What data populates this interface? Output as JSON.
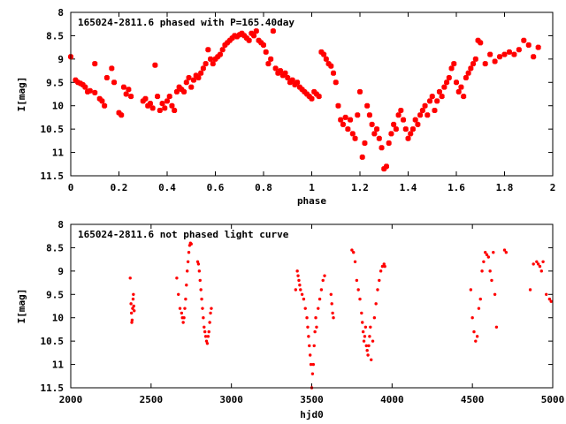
{
  "chart_data": [
    {
      "type": "scatter",
      "title": "165024-2811.6 phased with P=165.40day",
      "xlabel": "phase",
      "ylabel": "I[mag]",
      "xlim": [
        0,
        2
      ],
      "ylim": [
        8,
        11.5
      ],
      "y_inverted": true,
      "xticks": [
        "0",
        "0.2",
        "0.4",
        "0.6",
        "0.8",
        "1",
        "1.2",
        "1.4",
        "1.6",
        "1.8",
        "2"
      ],
      "yticks": [
        "8",
        "8.5",
        "9",
        "9.5",
        "10",
        "10.5",
        "11",
        "11.5"
      ],
      "color": "#ff0000",
      "points": [
        [
          0.0,
          8.95
        ],
        [
          0.02,
          9.45
        ],
        [
          0.03,
          9.5
        ],
        [
          0.04,
          9.52
        ],
        [
          0.05,
          9.55
        ],
        [
          0.06,
          9.6
        ],
        [
          0.07,
          9.7
        ],
        [
          0.08,
          9.68
        ],
        [
          0.1,
          9.72
        ],
        [
          0.1,
          9.1
        ],
        [
          0.12,
          9.85
        ],
        [
          0.13,
          9.9
        ],
        [
          0.14,
          10.0
        ],
        [
          0.15,
          9.4
        ],
        [
          0.17,
          9.2
        ],
        [
          0.18,
          9.5
        ],
        [
          0.2,
          10.15
        ],
        [
          0.21,
          10.2
        ],
        [
          0.22,
          9.6
        ],
        [
          0.23,
          9.75
        ],
        [
          0.24,
          9.65
        ],
        [
          0.25,
          9.8
        ],
        [
          0.3,
          9.9
        ],
        [
          0.31,
          9.85
        ],
        [
          0.32,
          10.0
        ],
        [
          0.33,
          9.95
        ],
        [
          0.34,
          10.05
        ],
        [
          0.35,
          9.13
        ],
        [
          0.36,
          9.8
        ],
        [
          0.37,
          10.1
        ],
        [
          0.38,
          9.95
        ],
        [
          0.39,
          10.05
        ],
        [
          0.4,
          9.9
        ],
        [
          0.41,
          9.8
        ],
        [
          0.42,
          10.0
        ],
        [
          0.43,
          10.1
        ],
        [
          0.44,
          9.7
        ],
        [
          0.45,
          9.6
        ],
        [
          0.46,
          9.65
        ],
        [
          0.47,
          9.7
        ],
        [
          0.48,
          9.5
        ],
        [
          0.49,
          9.4
        ],
        [
          0.5,
          9.6
        ],
        [
          0.51,
          9.45
        ],
        [
          0.52,
          9.35
        ],
        [
          0.53,
          9.4
        ],
        [
          0.54,
          9.3
        ],
        [
          0.55,
          9.2
        ],
        [
          0.56,
          9.1
        ],
        [
          0.57,
          8.8
        ],
        [
          0.58,
          9.0
        ],
        [
          0.59,
          9.1
        ],
        [
          0.6,
          9.0
        ],
        [
          0.61,
          8.95
        ],
        [
          0.62,
          8.9
        ],
        [
          0.63,
          8.8
        ],
        [
          0.64,
          8.7
        ],
        [
          0.65,
          8.65
        ],
        [
          0.66,
          8.6
        ],
        [
          0.67,
          8.55
        ],
        [
          0.68,
          8.5
        ],
        [
          0.69,
          8.52
        ],
        [
          0.7,
          8.48
        ],
        [
          0.71,
          8.45
        ],
        [
          0.72,
          8.5
        ],
        [
          0.73,
          8.55
        ],
        [
          0.74,
          8.6
        ],
        [
          0.75,
          8.45
        ],
        [
          0.76,
          8.5
        ],
        [
          0.77,
          8.4
        ],
        [
          0.78,
          8.6
        ],
        [
          0.79,
          8.65
        ],
        [
          0.8,
          8.7
        ],
        [
          0.81,
          8.85
        ],
        [
          0.82,
          9.1
        ],
        [
          0.83,
          9.0
        ],
        [
          0.84,
          8.4
        ],
        [
          0.85,
          9.2
        ],
        [
          0.86,
          9.3
        ],
        [
          0.87,
          9.25
        ],
        [
          0.88,
          9.35
        ],
        [
          0.89,
          9.3
        ],
        [
          0.9,
          9.4
        ],
        [
          0.91,
          9.5
        ],
        [
          0.92,
          9.45
        ],
        [
          0.93,
          9.55
        ],
        [
          0.94,
          9.5
        ],
        [
          0.95,
          9.6
        ],
        [
          0.96,
          9.65
        ],
        [
          0.97,
          9.7
        ],
        [
          0.98,
          9.75
        ],
        [
          0.99,
          9.8
        ],
        [
          1.0,
          9.85
        ],
        [
          1.01,
          9.7
        ],
        [
          1.02,
          9.75
        ],
        [
          1.03,
          9.8
        ],
        [
          1.04,
          8.85
        ],
        [
          1.05,
          8.9
        ],
        [
          1.06,
          9.0
        ],
        [
          1.07,
          9.1
        ],
        [
          1.08,
          9.15
        ],
        [
          1.09,
          9.3
        ],
        [
          1.1,
          9.5
        ],
        [
          1.11,
          10.0
        ],
        [
          1.12,
          10.3
        ],
        [
          1.13,
          10.4
        ],
        [
          1.14,
          10.25
        ],
        [
          1.15,
          10.5
        ],
        [
          1.16,
          10.3
        ],
        [
          1.17,
          10.6
        ],
        [
          1.18,
          10.7
        ],
        [
          1.19,
          10.2
        ],
        [
          1.2,
          9.7
        ],
        [
          1.21,
          11.1
        ],
        [
          1.22,
          10.8
        ],
        [
          1.23,
          10.0
        ],
        [
          1.24,
          10.2
        ],
        [
          1.25,
          10.4
        ],
        [
          1.26,
          10.6
        ],
        [
          1.27,
          10.5
        ],
        [
          1.28,
          10.7
        ],
        [
          1.29,
          10.9
        ],
        [
          1.3,
          11.35
        ],
        [
          1.31,
          11.3
        ],
        [
          1.32,
          10.8
        ],
        [
          1.33,
          10.6
        ],
        [
          1.34,
          10.4
        ],
        [
          1.35,
          10.5
        ],
        [
          1.36,
          10.2
        ],
        [
          1.37,
          10.1
        ],
        [
          1.38,
          10.3
        ],
        [
          1.39,
          10.5
        ],
        [
          1.4,
          10.7
        ],
        [
          1.41,
          10.6
        ],
        [
          1.42,
          10.5
        ],
        [
          1.43,
          10.3
        ],
        [
          1.44,
          10.4
        ],
        [
          1.45,
          10.2
        ],
        [
          1.46,
          10.1
        ],
        [
          1.47,
          10.0
        ],
        [
          1.48,
          10.2
        ],
        [
          1.49,
          9.9
        ],
        [
          1.5,
          9.8
        ],
        [
          1.51,
          10.1
        ],
        [
          1.52,
          9.9
        ],
        [
          1.53,
          9.7
        ],
        [
          1.54,
          9.8
        ],
        [
          1.55,
          9.6
        ],
        [
          1.56,
          9.5
        ],
        [
          1.57,
          9.4
        ],
        [
          1.58,
          9.2
        ],
        [
          1.59,
          9.1
        ],
        [
          1.6,
          9.5
        ],
        [
          1.61,
          9.7
        ],
        [
          1.62,
          9.6
        ],
        [
          1.63,
          9.8
        ],
        [
          1.64,
          9.4
        ],
        [
          1.65,
          9.3
        ],
        [
          1.66,
          9.2
        ],
        [
          1.67,
          9.1
        ],
        [
          1.68,
          9.0
        ],
        [
          1.69,
          8.6
        ],
        [
          1.7,
          8.65
        ],
        [
          1.72,
          9.1
        ],
        [
          1.74,
          8.9
        ],
        [
          1.76,
          9.05
        ],
        [
          1.78,
          8.95
        ],
        [
          1.8,
          8.9
        ],
        [
          1.82,
          8.85
        ],
        [
          1.84,
          8.9
        ],
        [
          1.86,
          8.8
        ],
        [
          1.88,
          8.6
        ],
        [
          1.9,
          8.7
        ],
        [
          1.92,
          8.95
        ],
        [
          1.94,
          8.75
        ]
      ]
    },
    {
      "type": "scatter",
      "title": "165024-2811.6 not phased light curve",
      "xlabel": "hjd0",
      "ylabel": "I[mag]",
      "xlim": [
        2000,
        5000
      ],
      "ylim": [
        8,
        11.5
      ],
      "y_inverted": true,
      "xticks": [
        "2000",
        "2500",
        "3000",
        "3500",
        "4000",
        "4500",
        "5000"
      ],
      "yticks": [
        "8",
        "8.5",
        "9",
        "9.5",
        "10",
        "10.5",
        "11",
        "11.5"
      ],
      "color": "#ff0000",
      "points": [
        [
          2370,
          9.15
        ],
        [
          2375,
          9.7
        ],
        [
          2378,
          9.9
        ],
        [
          2380,
          10.1
        ],
        [
          2382,
          10.05
        ],
        [
          2385,
          9.8
        ],
        [
          2388,
          9.6
        ],
        [
          2390,
          9.5
        ],
        [
          2392,
          9.75
        ],
        [
          2395,
          9.85
        ],
        [
          2660,
          9.15
        ],
        [
          2670,
          9.5
        ],
        [
          2680,
          9.8
        ],
        [
          2690,
          9.9
        ],
        [
          2695,
          10.0
        ],
        [
          2700,
          10.1
        ],
        [
          2705,
          10.0
        ],
        [
          2710,
          9.8
        ],
        [
          2715,
          9.6
        ],
        [
          2720,
          9.3
        ],
        [
          2725,
          9.0
        ],
        [
          2730,
          8.8
        ],
        [
          2735,
          8.6
        ],
        [
          2740,
          8.45
        ],
        [
          2745,
          8.4
        ],
        [
          2750,
          8.42
        ],
        [
          2790,
          8.8
        ],
        [
          2795,
          8.85
        ],
        [
          2800,
          9.0
        ],
        [
          2805,
          9.2
        ],
        [
          2810,
          9.4
        ],
        [
          2815,
          9.6
        ],
        [
          2820,
          9.8
        ],
        [
          2825,
          10.0
        ],
        [
          2830,
          10.2
        ],
        [
          2835,
          10.3
        ],
        [
          2840,
          10.4
        ],
        [
          2845,
          10.5
        ],
        [
          2850,
          10.55
        ],
        [
          2855,
          10.4
        ],
        [
          2860,
          10.3
        ],
        [
          2865,
          10.1
        ],
        [
          2870,
          9.9
        ],
        [
          2875,
          9.8
        ],
        [
          3400,
          9.4
        ],
        [
          3410,
          9.0
        ],
        [
          3415,
          9.1
        ],
        [
          3420,
          9.2
        ],
        [
          3425,
          9.3
        ],
        [
          3430,
          9.4
        ],
        [
          3440,
          9.5
        ],
        [
          3450,
          9.6
        ],
        [
          3460,
          9.8
        ],
        [
          3470,
          10.0
        ],
        [
          3475,
          10.2
        ],
        [
          3480,
          10.4
        ],
        [
          3485,
          10.6
        ],
        [
          3490,
          10.8
        ],
        [
          3495,
          11.0
        ],
        [
          3500,
          11.5
        ],
        [
          3505,
          11.2
        ],
        [
          3510,
          11.0
        ],
        [
          3515,
          10.6
        ],
        [
          3520,
          10.3
        ],
        [
          3525,
          10.0
        ],
        [
          3530,
          10.2
        ],
        [
          3540,
          9.8
        ],
        [
          3550,
          9.6
        ],
        [
          3560,
          9.4
        ],
        [
          3570,
          9.2
        ],
        [
          3580,
          9.1
        ],
        [
          3620,
          9.5
        ],
        [
          3625,
          9.7
        ],
        [
          3630,
          9.9
        ],
        [
          3635,
          10.0
        ],
        [
          3750,
          8.55
        ],
        [
          3760,
          8.6
        ],
        [
          3770,
          8.8
        ],
        [
          3780,
          9.2
        ],
        [
          3790,
          9.4
        ],
        [
          3800,
          9.6
        ],
        [
          3810,
          9.9
        ],
        [
          3815,
          10.1
        ],
        [
          3820,
          10.3
        ],
        [
          3825,
          10.5
        ],
        [
          3830,
          10.4
        ],
        [
          3835,
          10.2
        ],
        [
          3840,
          10.6
        ],
        [
          3845,
          10.7
        ],
        [
          3850,
          10.8
        ],
        [
          3855,
          10.6
        ],
        [
          3860,
          10.4
        ],
        [
          3865,
          10.2
        ],
        [
          3870,
          10.9
        ],
        [
          3880,
          10.5
        ],
        [
          3890,
          10.0
        ],
        [
          3900,
          9.7
        ],
        [
          3910,
          9.4
        ],
        [
          3920,
          9.2
        ],
        [
          3930,
          9.0
        ],
        [
          3940,
          8.9
        ],
        [
          3950,
          8.85
        ],
        [
          3955,
          8.9
        ],
        [
          4490,
          9.4
        ],
        [
          4500,
          10.0
        ],
        [
          4510,
          10.3
        ],
        [
          4520,
          10.5
        ],
        [
          4530,
          10.4
        ],
        [
          4540,
          9.8
        ],
        [
          4550,
          9.6
        ],
        [
          4560,
          9.0
        ],
        [
          4570,
          8.8
        ],
        [
          4580,
          8.6
        ],
        [
          4590,
          8.65
        ],
        [
          4600,
          8.7
        ],
        [
          4610,
          9.0
        ],
        [
          4620,
          9.2
        ],
        [
          4630,
          8.6
        ],
        [
          4640,
          9.5
        ],
        [
          4650,
          10.2
        ],
        [
          4700,
          8.55
        ],
        [
          4710,
          8.6
        ],
        [
          4860,
          9.4
        ],
        [
          4880,
          8.85
        ],
        [
          4900,
          8.8
        ],
        [
          4910,
          8.85
        ],
        [
          4920,
          8.9
        ],
        [
          4930,
          9.0
        ],
        [
          4940,
          8.8
        ],
        [
          4960,
          9.5
        ],
        [
          4980,
          9.6
        ],
        [
          4990,
          9.65
        ]
      ]
    }
  ]
}
